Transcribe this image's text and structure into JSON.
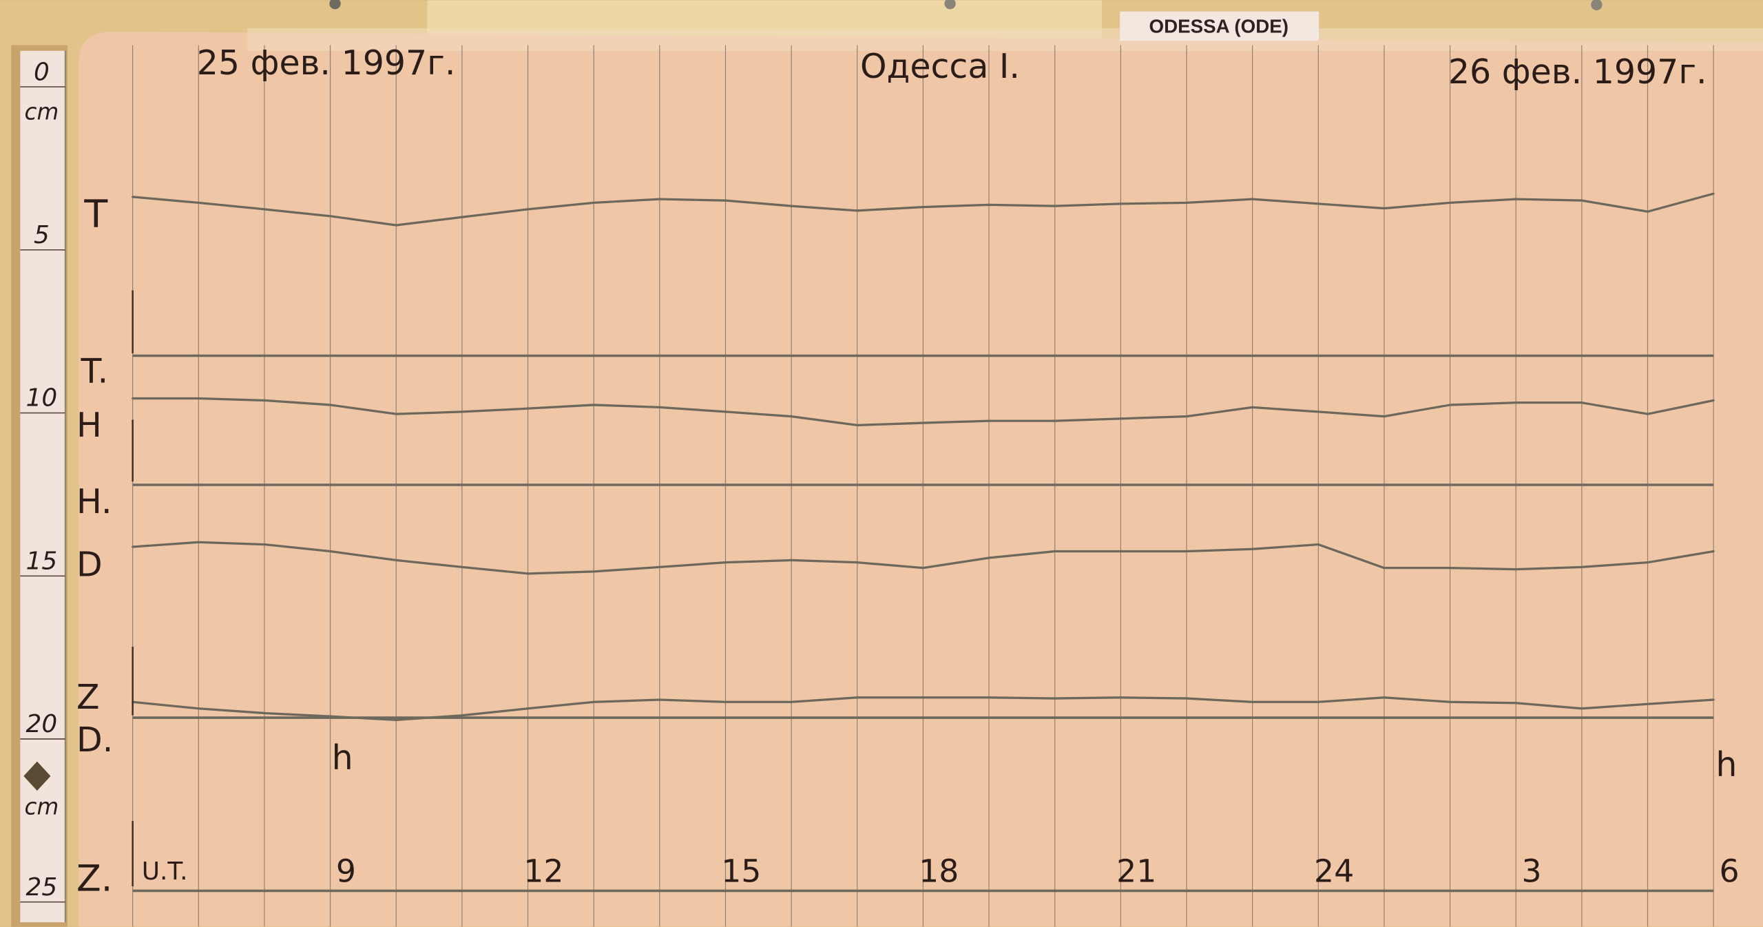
{
  "station_label": "ODESSA (ODE)",
  "header": {
    "date_left": "25 фев. 1997г.",
    "station": "Одесса I.",
    "date_right": "26 фев. 1997г."
  },
  "ruler": {
    "ticks": [
      "0",
      "5",
      "10",
      "15",
      "20",
      "25"
    ],
    "unit_top": "cm",
    "unit_bottom": "cm"
  },
  "channel_labels": {
    "T": "T",
    "T0": "T.",
    "H": "H",
    "H0": "H.",
    "D": "D",
    "D0": "D.",
    "Z": "Z",
    "Z0": "Z."
  },
  "hour_marks": [
    "h",
    "h"
  ],
  "colors": {
    "paper": "#efc6a6",
    "trace": "#6c695c",
    "board": "#e2c48a"
  },
  "chart_data": {
    "type": "line",
    "title": "",
    "xlabel": "U.T.",
    "x_ticks": [
      {
        "hour": 9,
        "label": "9"
      },
      {
        "hour": 12,
        "label": "12"
      },
      {
        "hour": 15,
        "label": "15"
      },
      {
        "hour": 18,
        "label": "18"
      },
      {
        "hour": 21,
        "label": "21"
      },
      {
        "hour": 24,
        "label": "24"
      },
      {
        "hour": 27,
        "label": "3"
      },
      {
        "hour": 30,
        "label": "6"
      }
    ],
    "xlim": [
      6,
      30
    ],
    "ylabel": "cm",
    "ylim": [
      0,
      25
    ],
    "y_inverted": true,
    "grid": "vertical hourly lines",
    "x": [
      6,
      7,
      8,
      9,
      10,
      11,
      12,
      13,
      14,
      15,
      16,
      17,
      18,
      19,
      20,
      21,
      22,
      23,
      24,
      25,
      26,
      27,
      28,
      29,
      30
    ],
    "series": [
      {
        "name": "T",
        "values": [
          3.79,
          3.97,
          4.17,
          4.38,
          4.66,
          4.41,
          4.17,
          3.97,
          3.86,
          3.9,
          4.07,
          4.21,
          4.1,
          4.03,
          4.07,
          4.0,
          3.97,
          3.86,
          4.0,
          4.14,
          3.97,
          3.86,
          3.9,
          4.24,
          3.69
        ]
      },
      {
        "name": "H",
        "values": [
          9.97,
          9.97,
          10.03,
          10.17,
          10.45,
          10.38,
          10.28,
          10.17,
          10.24,
          10.38,
          10.52,
          10.79,
          10.72,
          10.66,
          10.66,
          10.59,
          10.52,
          10.24,
          10.38,
          10.52,
          10.17,
          10.1,
          10.1,
          10.45,
          10.03
        ]
      },
      {
        "name": "D",
        "values": [
          14.52,
          14.38,
          14.45,
          14.66,
          14.93,
          15.14,
          15.34,
          15.28,
          15.14,
          15.0,
          14.93,
          15.0,
          15.17,
          14.86,
          14.66,
          14.66,
          14.66,
          14.59,
          14.45,
          15.17,
          15.17,
          15.21,
          15.14,
          15.0,
          14.66
        ]
      },
      {
        "name": "Z",
        "values": [
          19.28,
          19.48,
          19.62,
          19.72,
          19.83,
          19.69,
          19.48,
          19.28,
          19.21,
          19.28,
          19.28,
          19.14,
          19.14,
          19.14,
          19.17,
          19.14,
          19.17,
          19.28,
          19.28,
          19.14,
          19.28,
          19.31,
          19.48,
          19.34,
          19.21
        ]
      }
    ],
    "baselines": [
      {
        "name": "T.",
        "value": 8.66
      },
      {
        "name": "H.",
        "value": 12.62
      },
      {
        "name": "D.",
        "value": 19.76
      },
      {
        "name": "Z.",
        "value": 25.07
      }
    ]
  }
}
